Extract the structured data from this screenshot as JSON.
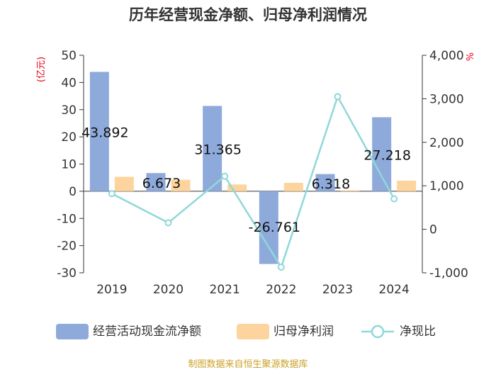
{
  "chart_data": {
    "type": "bar+line",
    "title": "历年经营现金净额、归母净利润情况",
    "categories": [
      "2019",
      "2020",
      "2021",
      "2022",
      "2023",
      "2024"
    ],
    "series": [
      {
        "name": "经营活动现金流净额",
        "type": "bar",
        "axis": "left",
        "color": "#8eaadb",
        "values": [
          43.892,
          6.673,
          31.365,
          -26.761,
          6.318,
          27.218
        ],
        "labels": [
          "43.892",
          "6.673",
          "31.365",
          "-26.761",
          "6.318",
          "27.218"
        ]
      },
      {
        "name": "归母净利润",
        "type": "bar",
        "axis": "left",
        "color": "#fdd49e",
        "values": [
          5.3,
          4.2,
          2.5,
          3.1,
          0.3,
          3.9
        ]
      },
      {
        "name": "净现比",
        "type": "line",
        "axis": "right",
        "color": "#8fd8da",
        "values": [
          820,
          150,
          1220,
          -870,
          3050,
          700
        ]
      }
    ],
    "y_left": {
      "label": "(亿元)",
      "ylim": [
        -30,
        50
      ],
      "ticks": [
        "50",
        "40",
        "30",
        "20",
        "10",
        "0",
        "-10",
        "-20",
        "-30"
      ]
    },
    "y_right": {
      "label": "%",
      "ylim": [
        -1000,
        4000
      ],
      "ticks": [
        "4,000",
        "3,000",
        "2,000",
        "1,000",
        "0",
        "-1,000"
      ]
    },
    "legend_position": "bottom",
    "grid": false
  },
  "source": "制图数据来自恒生聚源数据库",
  "colors": {
    "axis": "#333333",
    "label_left": "#e3000f",
    "source": "#c9a227"
  }
}
